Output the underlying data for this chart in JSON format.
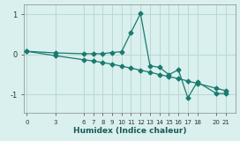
{
  "xlabel": "Humidex (Indice chaleur)",
  "bg_color": "#d9f0ee",
  "grid_color": "#b8d8d4",
  "line_color": "#1a7a6e",
  "line1_x": [
    0,
    3,
    6,
    7,
    8,
    9,
    10,
    11,
    12,
    13,
    14,
    15,
    16,
    17,
    18,
    20,
    21
  ],
  "line1_y": [
    0.08,
    0.04,
    0.02,
    0.02,
    0.02,
    0.05,
    0.07,
    0.55,
    1.02,
    -0.28,
    -0.32,
    -0.5,
    -0.38,
    -1.08,
    -0.68,
    -0.97,
    -0.97
  ],
  "line2_x": [
    0,
    3,
    6,
    7,
    8,
    9,
    10,
    11,
    12,
    13,
    14,
    15,
    16,
    17,
    18,
    20,
    21
  ],
  "line2_y": [
    0.08,
    -0.03,
    -0.13,
    -0.16,
    -0.2,
    -0.24,
    -0.29,
    -0.34,
    -0.39,
    -0.44,
    -0.5,
    -0.55,
    -0.6,
    -0.66,
    -0.72,
    -0.84,
    -0.9
  ],
  "xticks": [
    0,
    3,
    6,
    7,
    8,
    9,
    10,
    11,
    12,
    13,
    14,
    15,
    16,
    17,
    18,
    20,
    21
  ],
  "yticks": [
    -1,
    0,
    1
  ],
  "xlim": [
    -0.3,
    22.0
  ],
  "ylim": [
    -1.45,
    1.25
  ],
  "markersize": 2.5,
  "linewidth": 0.9
}
